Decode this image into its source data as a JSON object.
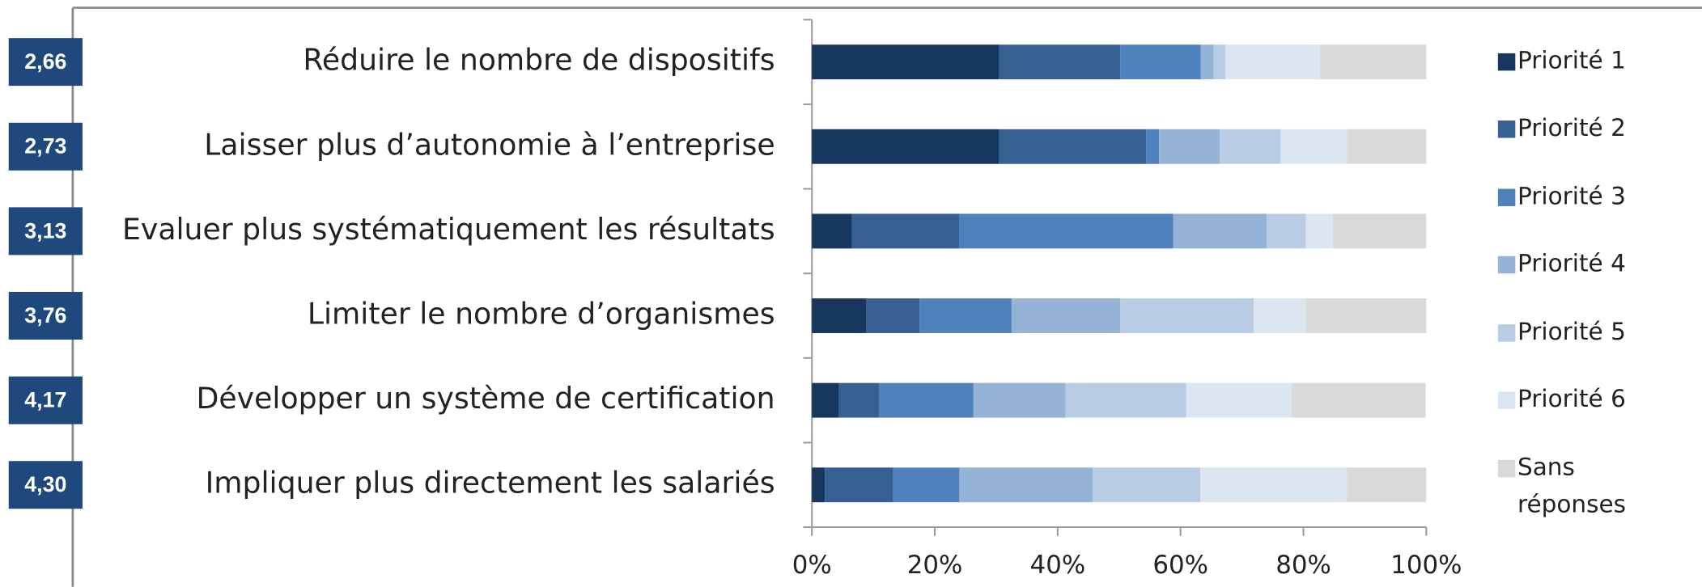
{
  "chart_data": {
    "type": "stacked_bar_horizontal",
    "categories": [
      "Réduire le nombre de dispositifs",
      "Laisser plus d’autonomie à l’entreprise",
      "Evaluer plus systématiquement les résultats",
      "Limiter le nombre d’organismes",
      "Développer un système de certification",
      "Impliquer plus directement les salariés"
    ],
    "annotations": [
      "2,66",
      "2,73",
      "3,13",
      "3,76",
      "4,17",
      "4,30"
    ],
    "series": [
      {
        "name": "Priorité 1",
        "color": "#17375e",
        "values": [
          30.4,
          30.4,
          6.5,
          8.8,
          4.4,
          2.1
        ]
      },
      {
        "name": "Priorité 2",
        "color": "#366092",
        "values": [
          19.8,
          24.0,
          17.5,
          8.7,
          6.5,
          11.1
        ]
      },
      {
        "name": "Priorité 3",
        "color": "#4f81bd",
        "values": [
          13.1,
          2.1,
          34.8,
          15.0,
          15.4,
          10.8
        ]
      },
      {
        "name": "Priorité 4",
        "color": "#95b3d7",
        "values": [
          2.1,
          9.9,
          15.2,
          17.7,
          15.0,
          21.7
        ]
      },
      {
        "name": "Priorité 5",
        "color": "#b8cce4",
        "values": [
          1.9,
          9.9,
          6.4,
          21.7,
          19.6,
          17.5
        ]
      },
      {
        "name": "Priorité 6",
        "color": "#dce6f1",
        "values": [
          15.4,
          10.8,
          4.4,
          8.5,
          17.1,
          23.9
        ]
      },
      {
        "name": "Sans réponses",
        "color": "#d9d9d9",
        "values": [
          17.3,
          12.9,
          15.2,
          19.6,
          21.9,
          12.9
        ]
      }
    ],
    "xlim": [
      0,
      100
    ],
    "xticks": [
      {
        "value": 0,
        "label": "0%"
      },
      {
        "value": 20,
        "label": "20%"
      },
      {
        "value": 40,
        "label": "40%"
      },
      {
        "value": 60,
        "label": "60%"
      },
      {
        "value": 80,
        "label": "80%"
      },
      {
        "value": 100,
        "label": "100%"
      }
    ],
    "legend": "right"
  }
}
